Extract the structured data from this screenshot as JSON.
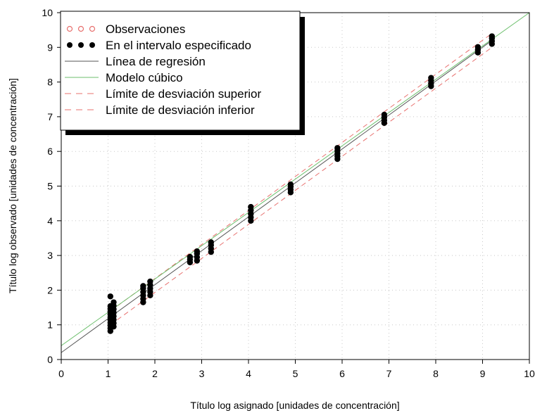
{
  "chart_data": {
    "type": "scatter",
    "title": "",
    "xlabel": "Título log asignado [unidades de concentración]",
    "ylabel": "Título log observado [unidades de concentración]",
    "xlim": [
      0,
      10
    ],
    "ylim": [
      0,
      10
    ],
    "xticks": [
      "0",
      "1",
      "2",
      "3",
      "4",
      "5",
      "6",
      "7",
      "8",
      "9",
      "10"
    ],
    "yticks": [
      "0",
      "1",
      "2",
      "3",
      "4",
      "5",
      "6",
      "7",
      "8",
      "9",
      "10"
    ],
    "grid": true,
    "legend_position": "top-left",
    "legend": [
      {
        "label": "Observaciones",
        "kind": "open-circle",
        "color": "#e8706e"
      },
      {
        "label": "En el intervalo especificado",
        "kind": "filled-circle",
        "color": "#000000"
      },
      {
        "label": "Línea de regresión",
        "kind": "line",
        "color": "#555555"
      },
      {
        "label": "Modelo cúbico",
        "kind": "line",
        "color": "#6cbf6c"
      },
      {
        "label": "Límite de desviación superior",
        "kind": "dashed",
        "color": "#e8706e"
      },
      {
        "label": "Límite de desviación inferior",
        "kind": "dashed",
        "color": "#e8706e"
      }
    ],
    "observation_groups": [
      {
        "x": 1.05,
        "y_values": [
          0.82,
          0.9,
          0.98,
          1.06,
          1.14,
          1.22,
          1.3,
          1.38,
          1.46,
          1.54,
          1.82
        ]
      },
      {
        "x": 1.12,
        "y_values": [
          0.95,
          1.05,
          1.15,
          1.25,
          1.35,
          1.45,
          1.55,
          1.65
        ]
      },
      {
        "x": 1.75,
        "y_values": [
          1.65,
          1.75,
          1.85,
          1.95,
          2.05,
          2.12
        ]
      },
      {
        "x": 1.9,
        "y_values": [
          1.85,
          1.95,
          2.05,
          2.15,
          2.25
        ]
      },
      {
        "x": 2.75,
        "y_values": [
          2.8,
          2.88,
          2.96
        ]
      },
      {
        "x": 2.9,
        "y_values": [
          2.85,
          2.95,
          3.05,
          3.12
        ]
      },
      {
        "x": 3.2,
        "y_values": [
          3.1,
          3.2,
          3.3,
          3.38
        ]
      },
      {
        "x": 4.05,
        "y_values": [
          4.0,
          4.1,
          4.2,
          4.3,
          4.4
        ]
      },
      {
        "x": 4.9,
        "y_values": [
          4.82,
          4.9,
          4.98,
          5.05
        ]
      },
      {
        "x": 5.9,
        "y_values": [
          5.78,
          5.86,
          5.94,
          6.02,
          6.1
        ]
      },
      {
        "x": 6.9,
        "y_values": [
          6.82,
          6.9,
          6.98,
          7.06
        ]
      },
      {
        "x": 7.9,
        "y_values": [
          7.88,
          7.96,
          8.04,
          8.12
        ]
      },
      {
        "x": 8.9,
        "y_values": [
          8.85,
          8.93,
          9.01
        ]
      },
      {
        "x": 9.2,
        "y_values": [
          9.1,
          9.18,
          9.26,
          9.32
        ]
      }
    ],
    "regression_line": {
      "x": [
        0,
        9.2
      ],
      "y": [
        0.2,
        9.2
      ]
    },
    "cubic_model": {
      "x": [
        0,
        10
      ],
      "y": [
        0.4,
        10.0
      ]
    },
    "upper_deviation_limit": {
      "x": [
        1.05,
        9.2
      ],
      "y": [
        1.4,
        9.4
      ]
    },
    "lower_deviation_limit": {
      "x": [
        1.05,
        9.2
      ],
      "y": [
        1.0,
        9.0
      ]
    }
  }
}
